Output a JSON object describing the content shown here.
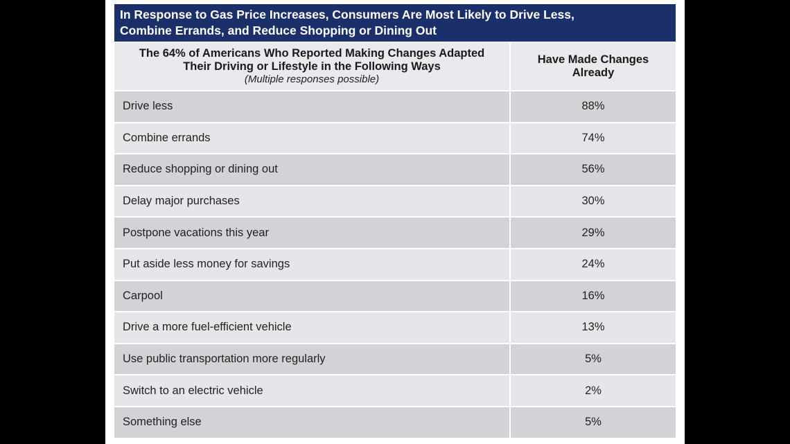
{
  "chart_data": {
    "type": "table",
    "title": "In Response to Gas Price Increases, Consumers Are Most Likely to Drive Less, Combine Errands, and Reduce Shopping or Dining Out",
    "title_lines": [
      "In Response to Gas Price Increases, Consumers Are Most Likely to Drive Less,",
      "Combine Errands, and Reduce Shopping or Dining Out"
    ],
    "header": {
      "col1_lines": [
        "The 64% of Americans Who Reported Making Changes Adapted",
        "Their Driving or Lifestyle in the Following Ways"
      ],
      "col1_note": "(Multiple responses possible)",
      "col2_lines": [
        "Have Made Changes",
        "Already"
      ]
    },
    "rows": [
      {
        "label": "Drive less",
        "value": "88%"
      },
      {
        "label": "Combine errands",
        "value": "74%"
      },
      {
        "label": "Reduce shopping or dining out",
        "value": "56%"
      },
      {
        "label": "Delay major purchases",
        "value": "30%"
      },
      {
        "label": "Postpone vacations this year",
        "value": "29%"
      },
      {
        "label": "Put aside less money for savings",
        "value": "24%"
      },
      {
        "label": "Carpool",
        "value": "16%"
      },
      {
        "label": "Drive a more fuel-efficient vehicle",
        "value": "13%"
      },
      {
        "label": "Use public transportation more regularly",
        "value": "5%"
      },
      {
        "label": "Switch to an electric vehicle",
        "value": "2%"
      },
      {
        "label": "Something else",
        "value": "5%"
      }
    ],
    "colors": {
      "title_bg": "#1b2f6b",
      "row_dark": "#d2d2d7",
      "row_light": "#e6e6ea",
      "header_bg": "#e9e9ee"
    }
  }
}
